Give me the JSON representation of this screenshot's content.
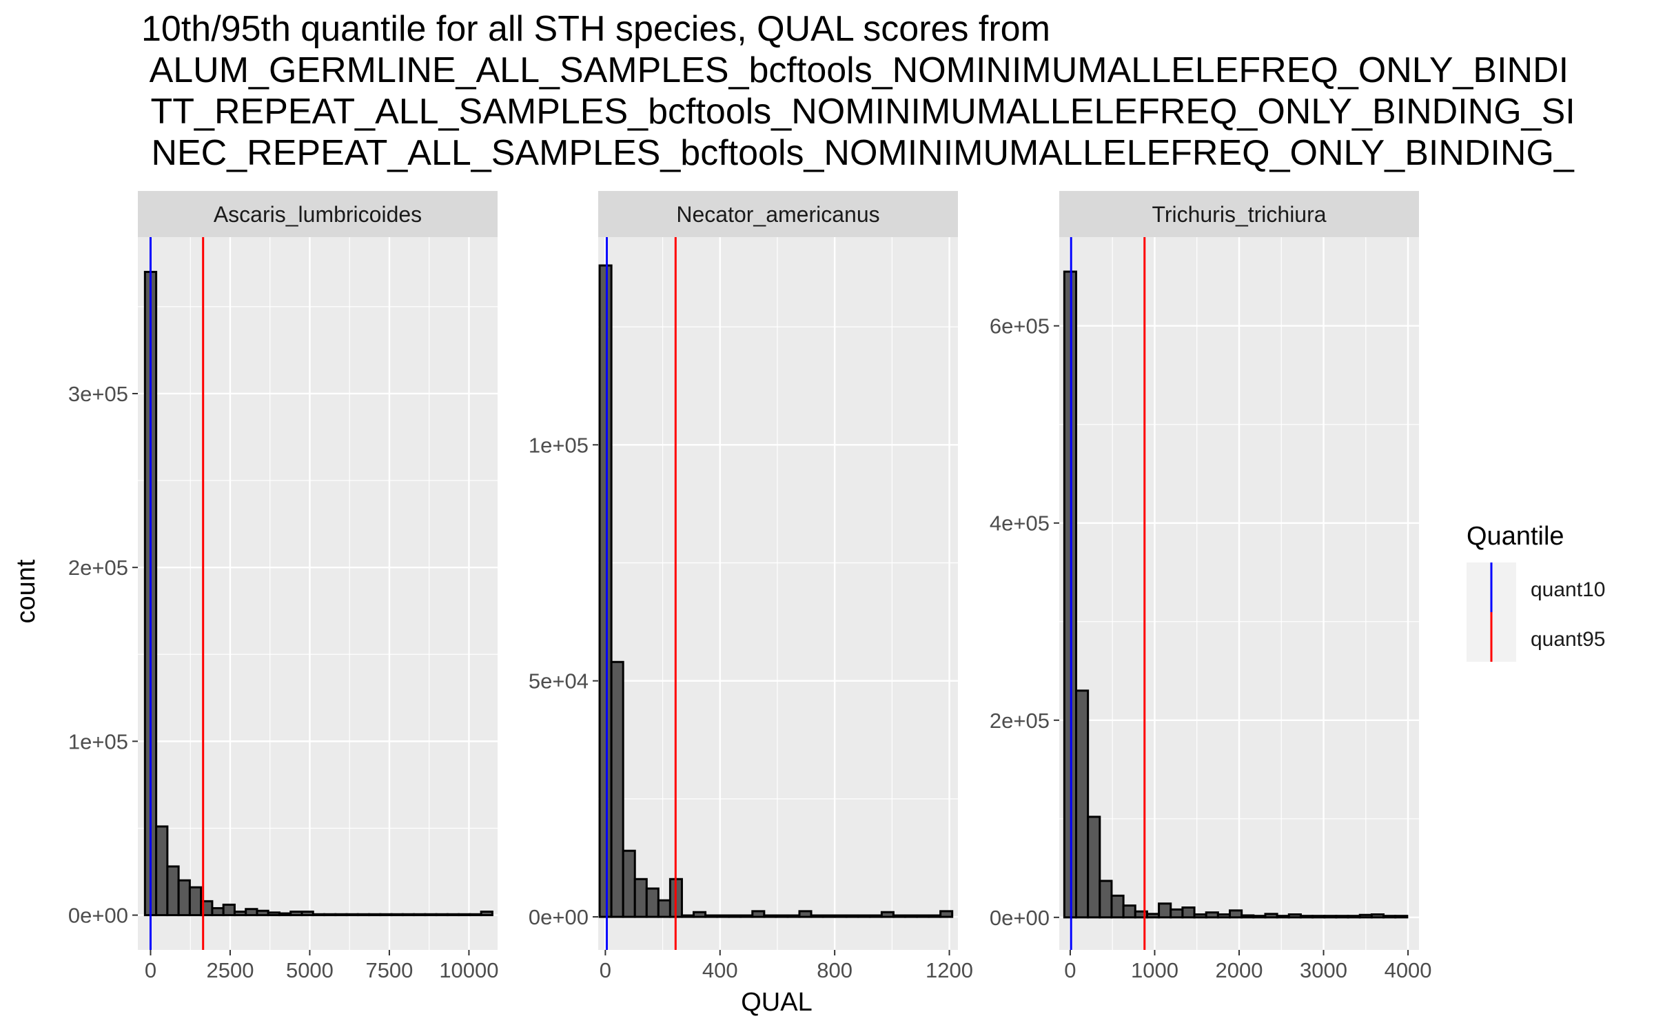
{
  "chart_data": {
    "type": "bar",
    "title_lines": [
      "10th/95th quantile for all STH species, QUAL scores from",
      " ALUM_GERMLINE_ALL_SAMPLES_bcftools_NOMINIMUMALLELEFREQ_ONLY_BINDI",
      " TT_REPEAT_ALL_SAMPLES_bcftools_NOMINIMUMALLELEFREQ_ONLY_BINDING_SI",
      " NEC_REPEAT_ALL_SAMPLES_bcftools_NOMINIMUMALLELEFREQ_ONLY_BINDING_"
    ],
    "xlabel": "QUAL",
    "ylabel": "count",
    "grid": true,
    "legend": {
      "title": "Quantile",
      "position": "right",
      "entries": [
        {
          "name": "quant10",
          "color": "#0000ff"
        },
        {
          "name": "quant95",
          "color": "#ff0000"
        }
      ]
    },
    "colors": {
      "panel_bg": "#ebebeb",
      "strip_bg": "#d9d9d9",
      "bar_fill": "#595959",
      "bar_stroke": "#000000",
      "grid": "#ffffff",
      "quant10": "#0000ff",
      "quant95": "#ff0000"
    },
    "panels": [
      {
        "name": "Ascaris_lumbricoides",
        "xlim": [
          -400,
          10900
        ],
        "ylim": [
          -20000,
          390000
        ],
        "xticks": [
          0,
          2500,
          5000,
          7500,
          10000
        ],
        "xtick_labels": [
          "0",
          "2500",
          "5000",
          "7500",
          "10000"
        ],
        "yticks": [
          0,
          100000,
          200000,
          300000
        ],
        "ytick_labels": [
          "0e+00",
          "1e+05",
          "2e+05",
          "3e+05"
        ],
        "bin_start": -176,
        "bin_width": 352,
        "counts": [
          370000,
          51000,
          28000,
          20000,
          16000,
          8000,
          4000,
          6000,
          2000,
          3500,
          2500,
          1500,
          1000,
          2000,
          2000,
          500,
          500,
          500,
          500,
          500,
          500,
          500,
          500,
          500,
          500,
          500,
          500,
          500,
          500,
          500,
          2000
        ],
        "quant10": 0,
        "quant95": 1650
      },
      {
        "name": "Necator_americanus",
        "xlim": [
          -25,
          1230
        ],
        "ylim": [
          -7000,
          144000
        ],
        "xticks": [
          0,
          400,
          800,
          1200
        ],
        "xtick_labels": [
          "0",
          "400",
          "800",
          "1200"
        ],
        "yticks": [
          0,
          50000,
          100000
        ],
        "ytick_labels": [
          "0e+00",
          "5e+04",
          "1e+05"
        ],
        "bin_start": -20,
        "bin_width": 41,
        "counts": [
          138000,
          54000,
          14000,
          8000,
          6000,
          3500,
          8000,
          300,
          1000,
          300,
          300,
          300,
          300,
          1200,
          300,
          300,
          300,
          1200,
          300,
          300,
          300,
          300,
          300,
          300,
          1000,
          300,
          300,
          300,
          300,
          1200
        ],
        "quant10": 5,
        "quant95": 245
      },
      {
        "name": "Trichuris_trichiura",
        "xlim": [
          -130,
          4130
        ],
        "ylim": [
          -33000,
          690000
        ],
        "xticks": [
          0,
          1000,
          2000,
          3000,
          4000
        ],
        "xtick_labels": [
          "0",
          "1000",
          "2000",
          "3000",
          "4000"
        ],
        "yticks": [
          0,
          200000,
          400000,
          600000
        ],
        "ytick_labels": [
          "0e+00",
          "2e+05",
          "4e+05",
          "6e+05"
        ],
        "bin_start": -70,
        "bin_width": 140,
        "counts": [
          655000,
          230000,
          102000,
          37000,
          22000,
          12000,
          6000,
          3500,
          14000,
          8000,
          10000,
          3000,
          5000,
          3000,
          7000,
          2000,
          1500,
          3500,
          1500,
          3000,
          1500,
          1500,
          1500,
          1500,
          1500,
          2500,
          3000,
          1500,
          1500
        ],
        "quant10": 10,
        "quant95": 880
      }
    ]
  }
}
